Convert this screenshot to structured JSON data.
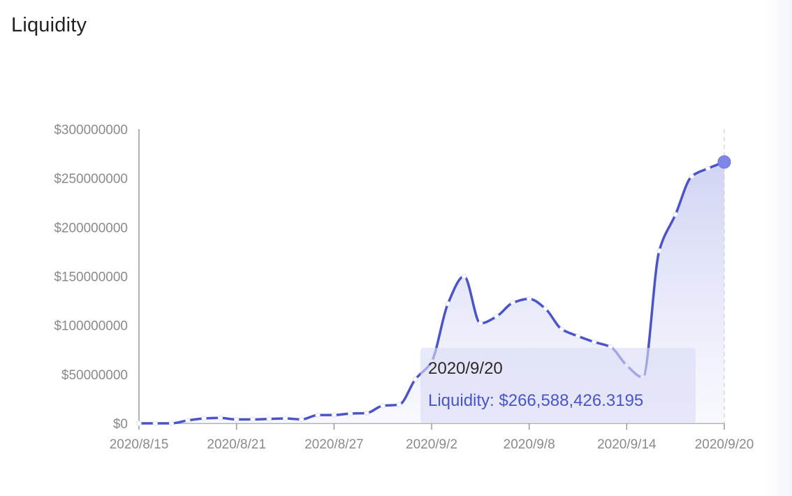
{
  "title": "Liquidity",
  "chart_data": {
    "type": "area",
    "title": "Liquidity",
    "xlabel": "",
    "ylabel": "",
    "x": [
      "2020/8/15",
      "2020/8/16",
      "2020/8/17",
      "2020/8/18",
      "2020/8/19",
      "2020/8/20",
      "2020/8/21",
      "2020/8/22",
      "2020/8/23",
      "2020/8/24",
      "2020/8/25",
      "2020/8/26",
      "2020/8/27",
      "2020/8/28",
      "2020/8/29",
      "2020/8/30",
      "2020/8/31",
      "2020/9/1",
      "2020/9/2",
      "2020/9/3",
      "2020/9/4",
      "2020/9/5",
      "2020/9/6",
      "2020/9/7",
      "2020/9/8",
      "2020/9/9",
      "2020/9/10",
      "2020/9/11",
      "2020/9/12",
      "2020/9/13",
      "2020/9/14",
      "2020/9/15",
      "2020/9/16",
      "2020/9/17",
      "2020/9/18",
      "2020/9/19",
      "2020/9/20"
    ],
    "series": [
      {
        "name": "Liquidity",
        "values": [
          0,
          0,
          0,
          3000000,
          5000000,
          5500000,
          4000000,
          4000000,
          4500000,
          5000000,
          4000000,
          8500000,
          8500000,
          10000000,
          10500000,
          18000000,
          19000000,
          45000000,
          63000000,
          122000000,
          150000000,
          102000000,
          109000000,
          123000000,
          127000000,
          117000000,
          96000000,
          89000000,
          83000000,
          78000000,
          59000000,
          47000000,
          176000000,
          213000000,
          252000000,
          260000000,
          266588426.3195
        ]
      }
    ],
    "x_ticks": [
      "2020/8/15",
      "2020/8/21",
      "2020/8/27",
      "2020/9/2",
      "2020/9/8",
      "2020/9/14",
      "2020/9/20"
    ],
    "y_ticks": [
      "$0",
      "$50000000",
      "$100000000",
      "$150000000",
      "$200000000",
      "$250000000",
      "$300000000"
    ],
    "ylim": [
      0,
      300000000
    ],
    "grid": false,
    "colors": {
      "line": "#4a54c8",
      "fill": "#dcdef7",
      "highlight": "#7f87e6"
    }
  },
  "tooltip": {
    "date": "2020/9/20",
    "text": "Liquidity: $266,588,426.3195"
  }
}
